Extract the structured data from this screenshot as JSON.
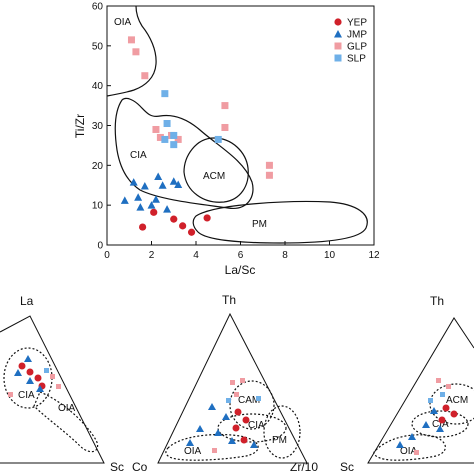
{
  "chart_data": [
    {
      "type": "scatter",
      "title": "",
      "xlabel": "La/Sc",
      "ylabel": "Ti/Zr",
      "xlim": [
        0,
        12
      ],
      "ylim": [
        0,
        60
      ],
      "xticks": [
        "0",
        "2",
        "4",
        "6",
        "8",
        "10",
        "12"
      ],
      "yticks": [
        "0",
        "10",
        "20",
        "30",
        "40",
        "50",
        "60"
      ],
      "legend_placement": "top-right",
      "series": [
        {
          "name": "YEP",
          "marker": "circle",
          "color": "#d0202a",
          "points": [
            [
              1.6,
              4.5
            ],
            [
              2.1,
              8.2
            ],
            [
              3.0,
              6.5
            ],
            [
              3.4,
              4.8
            ],
            [
              3.8,
              3.2
            ],
            [
              4.5,
              6.8
            ]
          ]
        },
        {
          "name": "JMP",
          "marker": "triangle",
          "color": "#1f6fc1",
          "points": [
            [
              0.8,
              11.2
            ],
            [
              1.2,
              15.8
            ],
            [
              1.4,
              12.0
            ],
            [
              1.5,
              9.5
            ],
            [
              1.7,
              14.8
            ],
            [
              2.0,
              10.0
            ],
            [
              2.2,
              11.5
            ],
            [
              2.3,
              17.2
            ],
            [
              2.5,
              15.0
            ],
            [
              2.7,
              9.0
            ],
            [
              3.0,
              16.0
            ],
            [
              3.2,
              15.2
            ]
          ]
        },
        {
          "name": "GLP",
          "marker": "square",
          "color": "#f09ca2",
          "points": [
            [
              1.1,
              51.5
            ],
            [
              1.3,
              48.5
            ],
            [
              1.7,
              42.5
            ],
            [
              2.2,
              29.0
            ],
            [
              2.4,
              27.0
            ],
            [
              2.9,
              27.5
            ],
            [
              3.2,
              26.5
            ],
            [
              5.3,
              35.0
            ],
            [
              5.3,
              29.5
            ],
            [
              7.3,
              20.0
            ],
            [
              7.3,
              17.5
            ]
          ]
        },
        {
          "name": "SLP",
          "marker": "square",
          "color": "#6fb0e8",
          "points": [
            [
              2.6,
              38.0
            ],
            [
              2.7,
              30.5
            ],
            [
              2.6,
              26.5
            ],
            [
              3.0,
              27.5
            ],
            [
              3.0,
              25.2
            ],
            [
              5.0,
              26.5
            ]
          ]
        }
      ],
      "zones": [
        "OIA",
        "CIA",
        "ACM",
        "PM"
      ]
    },
    {
      "type": "ternary",
      "apices": {
        "top": "La",
        "left": "Sc",
        "right": ""
      },
      "zones": [
        "CIA",
        "OIA"
      ]
    },
    {
      "type": "ternary",
      "apices": {
        "top": "Th",
        "left": "Co",
        "right": "Zr/10"
      },
      "zones": [
        "CAM",
        "PM",
        "CIA",
        "OIA"
      ]
    },
    {
      "type": "ternary",
      "apices": {
        "top": "Th",
        "left": "Sc",
        "right": ""
      },
      "zones": [
        "ACM",
        "CIA",
        "OIA"
      ]
    }
  ]
}
